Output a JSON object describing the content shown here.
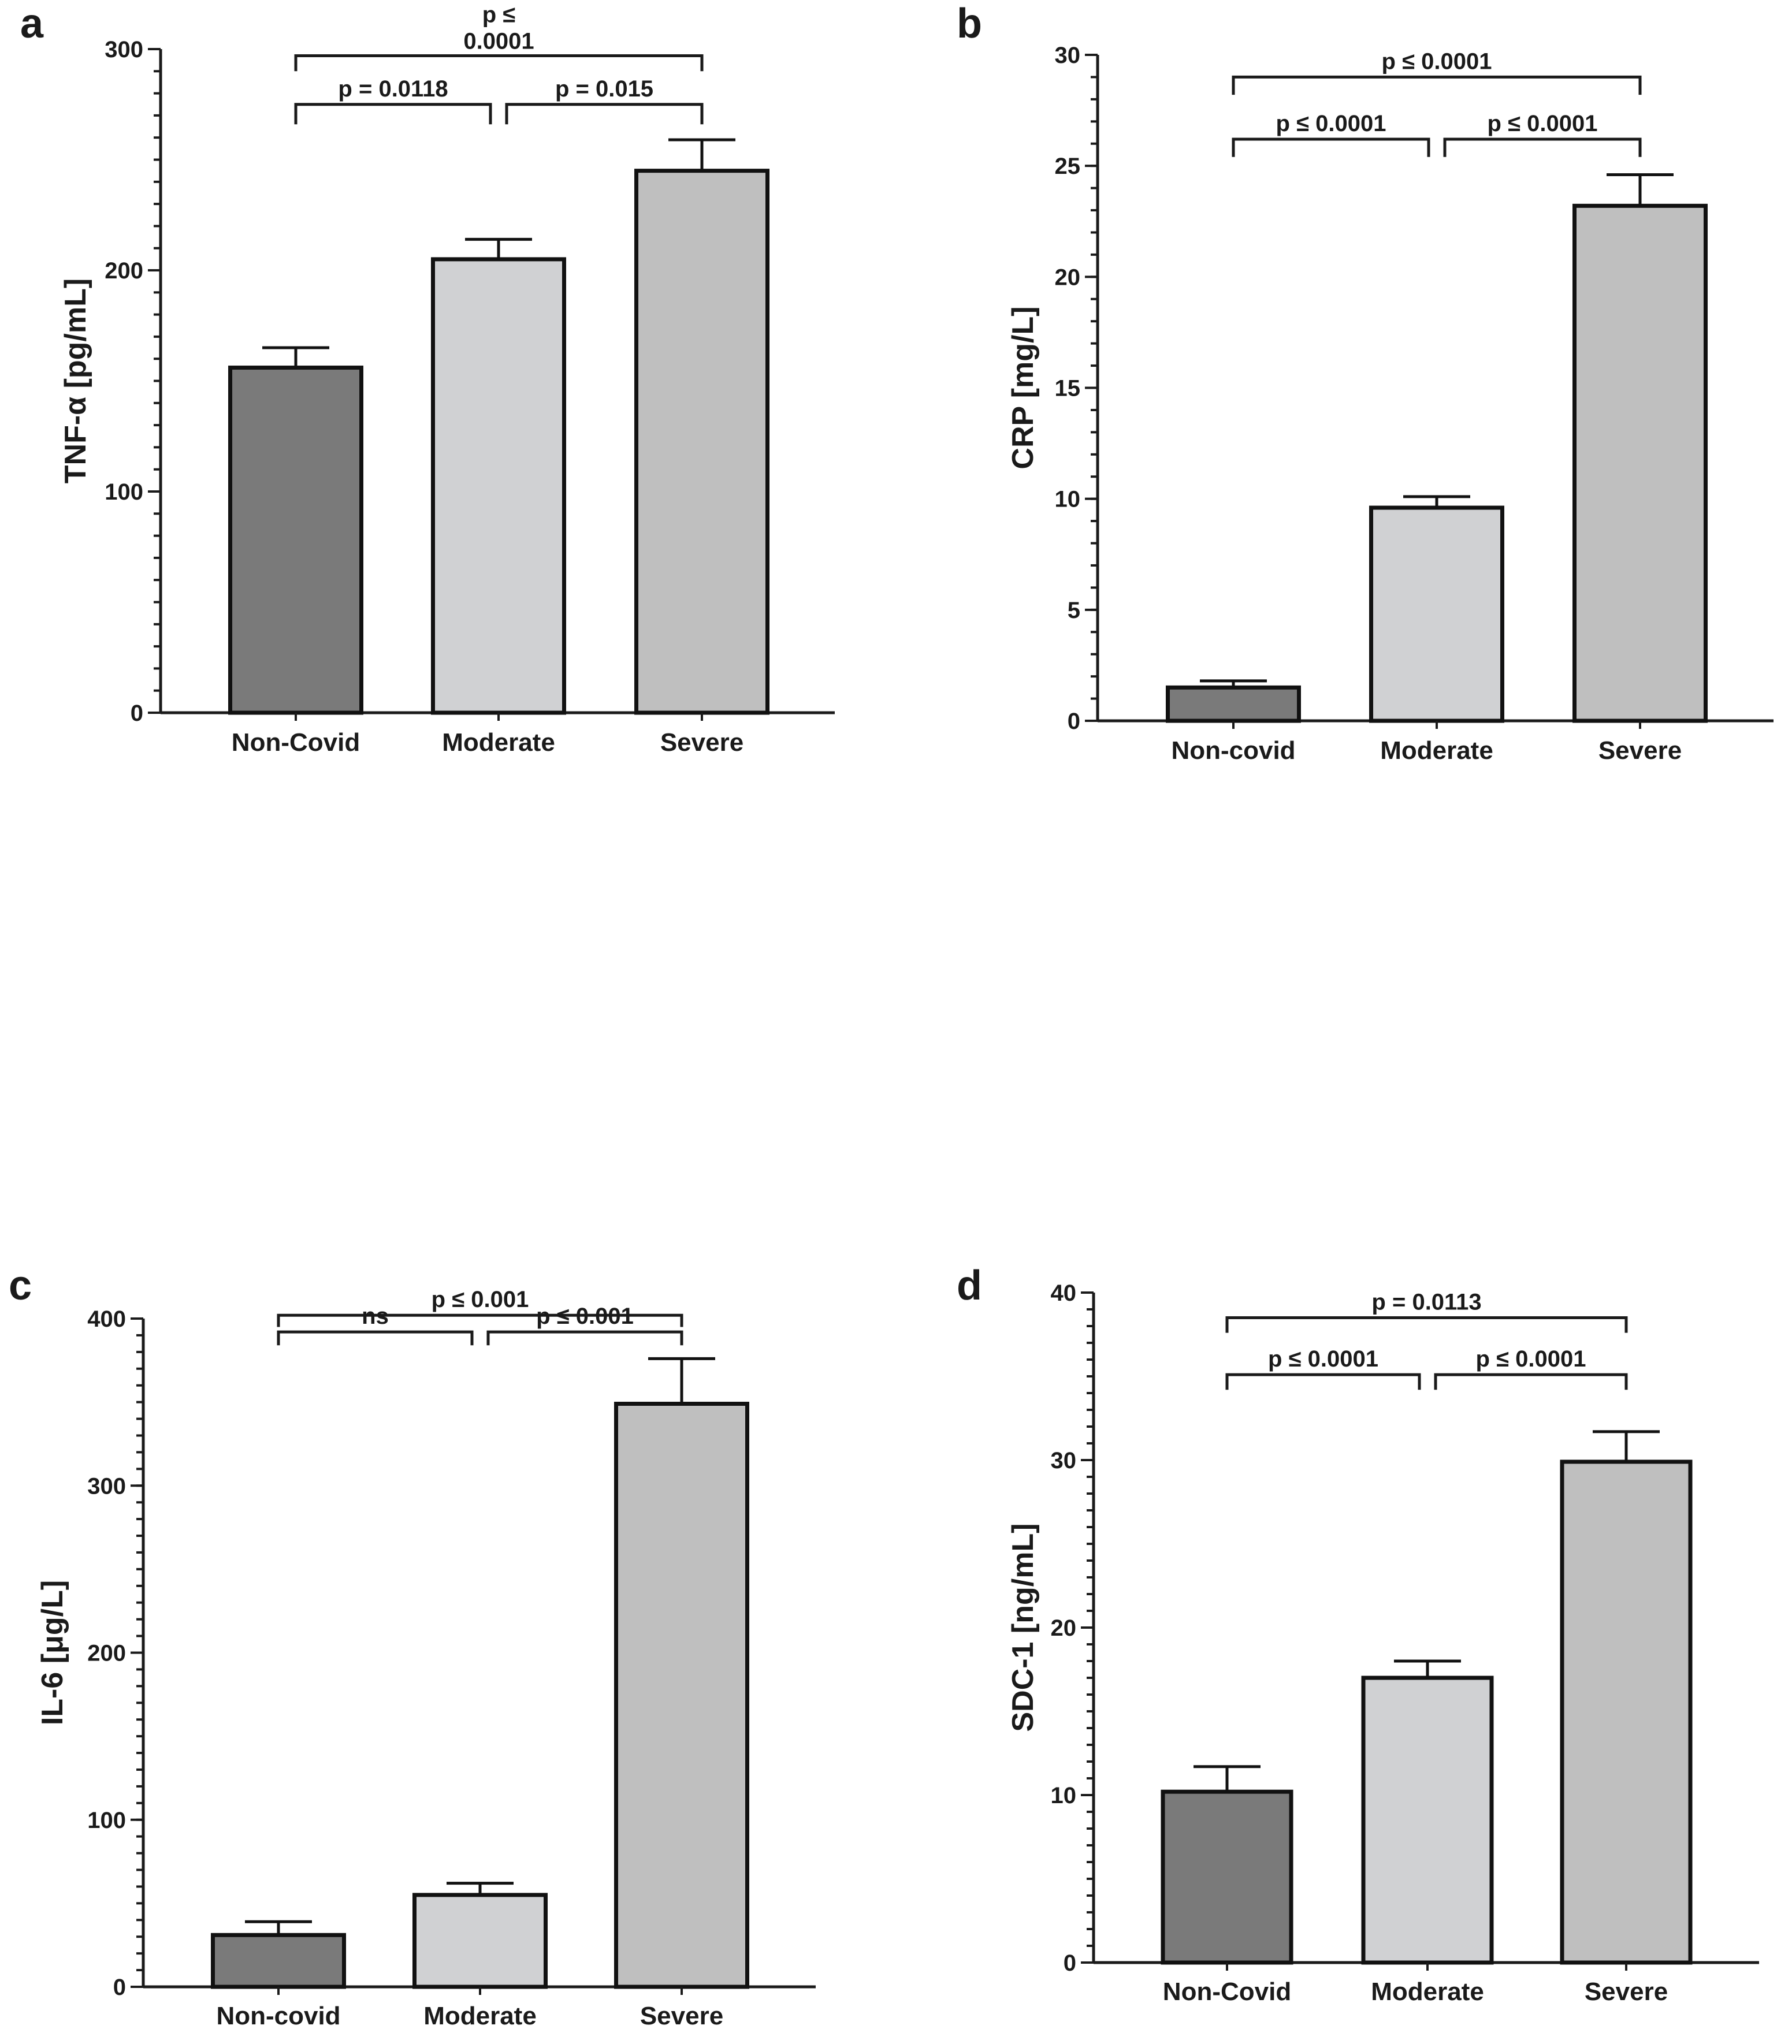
{
  "chart_data": [
    {
      "panel": "a",
      "type": "bar",
      "ylabel": "TNF-α [pg/mL]",
      "categories": [
        "Non-Covid",
        "Moderate",
        "Severe"
      ],
      "values": [
        156,
        205,
        245
      ],
      "errors": [
        9,
        9,
        14
      ],
      "colors": [
        "#7a7a7a",
        "#d0d1d3",
        "#bfbfbf"
      ],
      "ylim": [
        0,
        300
      ],
      "yticks": [
        0,
        100,
        200,
        300
      ],
      "minor_step": 10,
      "comparisons": [
        {
          "from": 0,
          "to": 2,
          "label": "p  ≤\n0.0001",
          "y": 297,
          "drop": 7
        },
        {
          "from": 0,
          "to": 1,
          "label": "p = 0.0118",
          "y": 275,
          "drop": 9
        },
        {
          "from": 1,
          "to": 2,
          "label": "p = 0.015",
          "y": 275,
          "drop": 9
        }
      ]
    },
    {
      "panel": "b",
      "type": "bar",
      "ylabel": "CRP [mg/L]",
      "categories": [
        "Non-covid",
        "Moderate",
        "Severe"
      ],
      "values": [
        1.5,
        9.6,
        23.2
      ],
      "errors": [
        0.3,
        0.5,
        1.4
      ],
      "colors": [
        "#7a7a7a",
        "#d0d1d3",
        "#bfbfbf"
      ],
      "ylim": [
        0,
        30
      ],
      "yticks": [
        0,
        5,
        10,
        15,
        20,
        25,
        30
      ],
      "minor_step": 1,
      "comparisons": [
        {
          "from": 0,
          "to": 2,
          "label": "p ≤ 0.0001",
          "y": 29,
          "drop": 0.8
        },
        {
          "from": 0,
          "to": 1,
          "label": "p ≤ 0.0001",
          "y": 26.2,
          "drop": 0.8
        },
        {
          "from": 1,
          "to": 2,
          "label": "p ≤ 0.0001",
          "y": 26.2,
          "drop": 0.8
        }
      ]
    },
    {
      "panel": "c",
      "type": "bar",
      "ylabel": "IL-6 [μg/L]",
      "categories": [
        "Non-covid",
        "Moderate",
        "Severe"
      ],
      "values": [
        31,
        55,
        349
      ],
      "errors": [
        8,
        7,
        27
      ],
      "colors": [
        "#7a7a7a",
        "#d0d1d3",
        "#bfbfbf"
      ],
      "ylim": [
        0,
        400
      ],
      "yticks": [
        0,
        100,
        200,
        300,
        400
      ],
      "minor_step": 10,
      "comparisons": [
        {
          "from": 0,
          "to": 2,
          "label": "p ≤ 0.001",
          "y": 402,
          "drop": 7
        },
        {
          "from": 0,
          "to": 1,
          "label": "ns",
          "y": 392,
          "drop": 8
        },
        {
          "from": 1,
          "to": 2,
          "label": "p ≤ 0.001",
          "y": 392,
          "drop": 8
        }
      ]
    },
    {
      "panel": "d",
      "type": "bar",
      "ylabel": "SDC-1 [ng/mL]",
      "categories": [
        "Non-Covid",
        "Moderate",
        "Severe"
      ],
      "values": [
        10.2,
        17,
        29.9
      ],
      "errors": [
        1.5,
        1.0,
        1.8
      ],
      "colors": [
        "#7a7a7a",
        "#d0d1d3",
        "#bfbfbf"
      ],
      "ylim": [
        0,
        40
      ],
      "yticks": [
        0,
        10,
        20,
        30,
        40
      ],
      "minor_step": 1,
      "comparisons": [
        {
          "from": 0,
          "to": 2,
          "label": "p = 0.0113",
          "y": 38.5,
          "drop": 0.9
        },
        {
          "from": 0,
          "to": 1,
          "label": "p ≤ 0.0001",
          "y": 35.1,
          "drop": 0.9
        },
        {
          "from": 1,
          "to": 2,
          "label": "p ≤ 0.0001",
          "y": 35.1,
          "drop": 0.9
        }
      ]
    }
  ]
}
